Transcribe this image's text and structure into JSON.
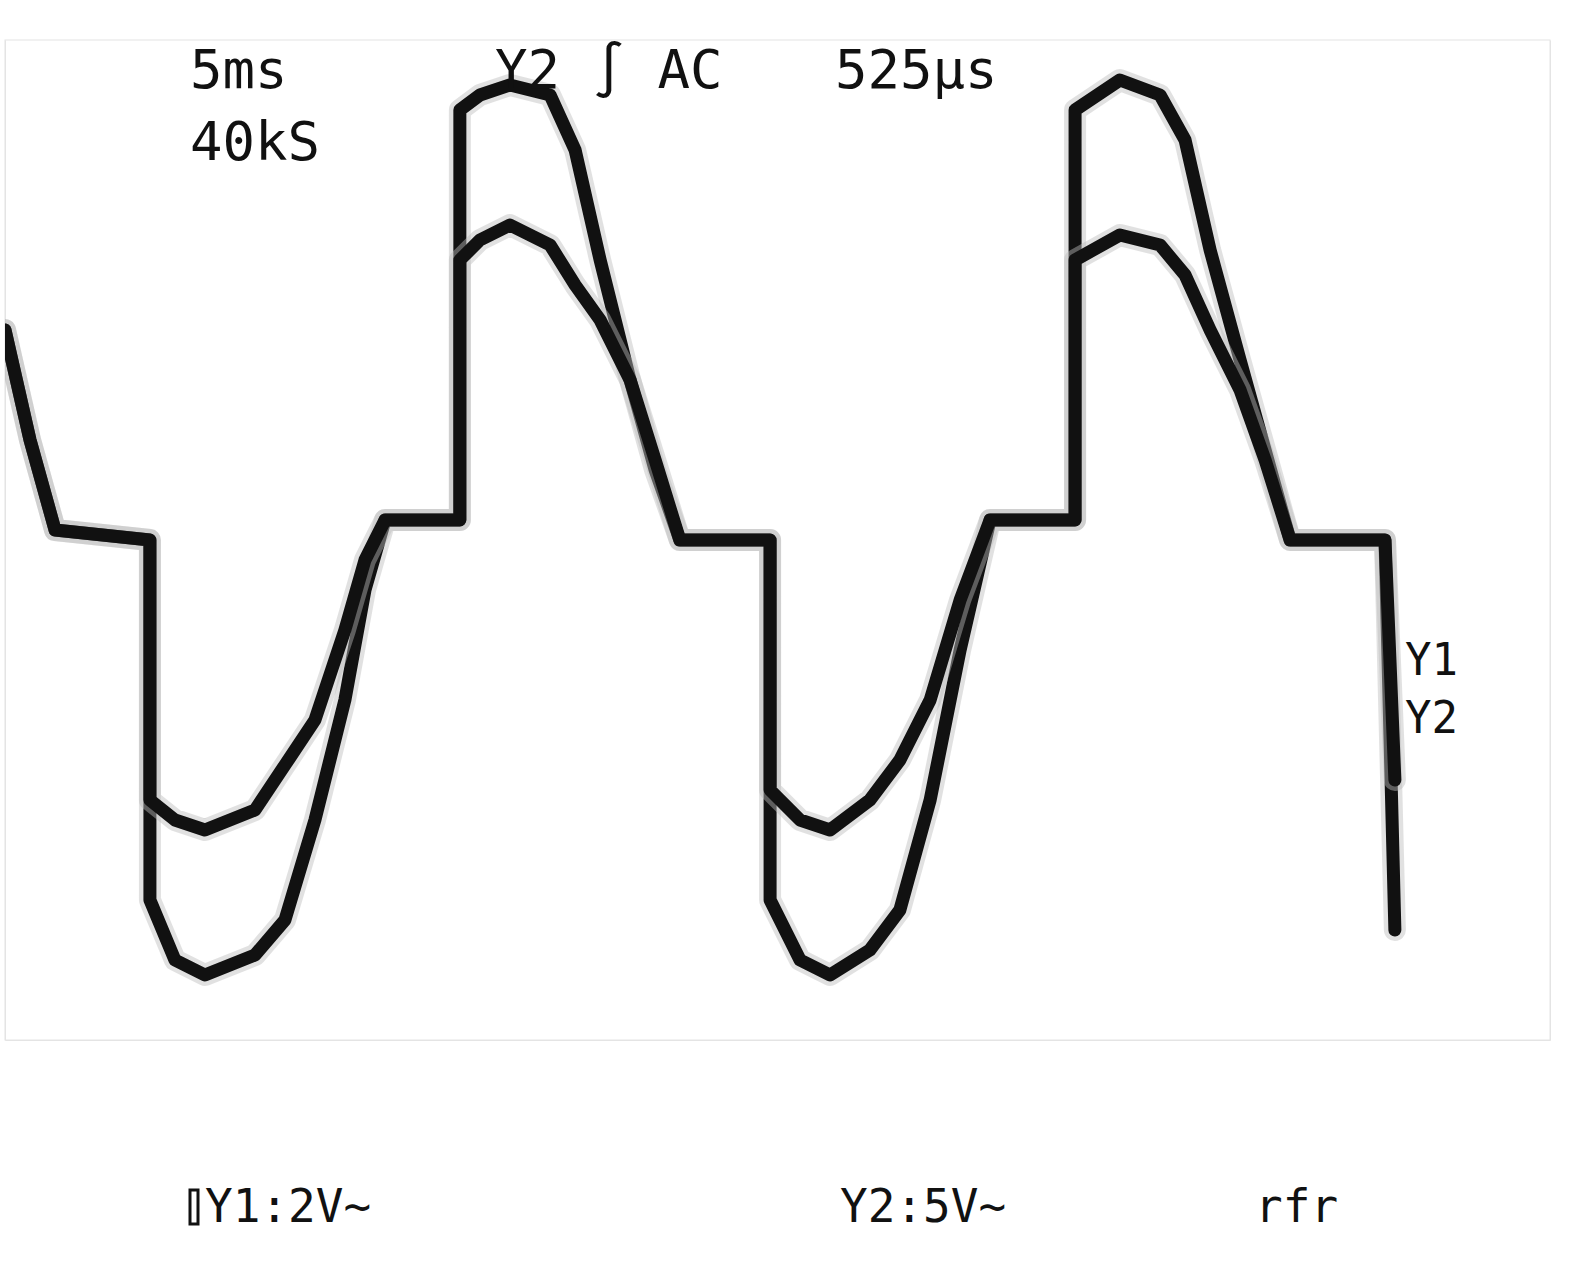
{
  "chart_data": {
    "type": "line",
    "annotations": [
      "5ms",
      "40kS",
      "Y2 ∫ AC",
      "525µs",
      "Y1:2V~",
      "Y2:5V~",
      "rfr"
    ],
    "x": [
      0,
      0.81,
      1.62,
      4.69,
      4.69,
      5.5,
      6.47,
      8.09,
      9.06,
      10.03,
      11.0,
      11.65,
      12.3,
      14.72,
      14.72,
      15.37,
      16.34,
      17.64,
      18.45,
      19.26,
      20.23,
      21.04,
      21.84,
      24.76,
      24.76,
      25.73,
      26.7,
      27.99,
      28.96,
      29.94,
      30.91,
      31.88,
      34.63,
      34.63,
      36.08,
      37.38,
      38.19,
      39.0,
      39.97,
      40.78,
      41.59,
      44.66,
      44.98
    ],
    "xlim": [
      0,
      50
    ],
    "ylim": [
      -8,
      8
    ],
    "y2lim": [
      -20,
      20
    ],
    "tick_labels": false,
    "grid": false,
    "series": [
      {
        "name": "Y1",
        "color": "#111111",
        "values": [
          3.36,
          1.6,
          0.16,
          0,
          -5.76,
          -6.72,
          -6.96,
          -6.64,
          -6.08,
          -4.48,
          -2.56,
          -0.8,
          0.32,
          0.32,
          6.88,
          7.12,
          7.28,
          7.12,
          6.24,
          4.48,
          2.56,
          1.12,
          0,
          0,
          -5.76,
          -6.72,
          -6.96,
          -6.56,
          -5.92,
          -4.16,
          -1.76,
          0.32,
          0.32,
          6.88,
          7.36,
          7.12,
          6.4,
          4.64,
          2.88,
          1.44,
          0,
          0,
          -6.24
        ]
      },
      {
        "name": "Y2",
        "color": "#111111",
        "axis": "y2",
        "values": [
          8.4,
          4.0,
          0.4,
          0,
          -10.4,
          -11.2,
          -11.6,
          -10.8,
          -9.0,
          -7.2,
          -3.6,
          -0.8,
          0.8,
          0.8,
          11.2,
          12.0,
          12.6,
          11.8,
          10.2,
          8.8,
          6.4,
          3.2,
          0,
          0,
          -10.0,
          -11.2,
          -11.6,
          -10.4,
          -8.8,
          -6.4,
          -2.4,
          0.8,
          0.8,
          11.2,
          12.2,
          11.8,
          10.6,
          8.4,
          6.0,
          3.2,
          0,
          0,
          -9.6
        ]
      }
    ]
  }
}
